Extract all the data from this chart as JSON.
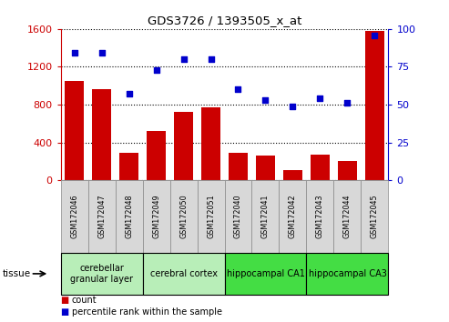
{
  "title": "GDS3726 / 1393505_x_at",
  "samples": [
    "GSM172046",
    "GSM172047",
    "GSM172048",
    "GSM172049",
    "GSM172050",
    "GSM172051",
    "GSM172040",
    "GSM172041",
    "GSM172042",
    "GSM172043",
    "GSM172044",
    "GSM172045"
  ],
  "counts": [
    1050,
    960,
    290,
    520,
    720,
    770,
    290,
    260,
    110,
    270,
    200,
    1580
  ],
  "percentiles": [
    84,
    84,
    57,
    73,
    80,
    80,
    60,
    53,
    49,
    54,
    51,
    96
  ],
  "bar_color": "#cc0000",
  "dot_color": "#0000cc",
  "left_ylim": [
    0,
    1600
  ],
  "right_ylim": [
    0,
    100
  ],
  "left_yticks": [
    0,
    400,
    800,
    1200,
    1600
  ],
  "right_yticks": [
    0,
    25,
    50,
    75,
    100
  ],
  "tissue_groups": [
    {
      "label": "cerebellar\ngranular layer",
      "start": 0,
      "end": 3,
      "color": "#b8eeb8"
    },
    {
      "label": "cerebral cortex",
      "start": 3,
      "end": 6,
      "color": "#b8eeb8"
    },
    {
      "label": "hippocampal CA1",
      "start": 6,
      "end": 9,
      "color": "#44dd44"
    },
    {
      "label": "hippocampal CA3",
      "start": 9,
      "end": 12,
      "color": "#44dd44"
    }
  ],
  "legend_items": [
    {
      "label": "count",
      "color": "#cc0000"
    },
    {
      "label": "percentile rank within the sample",
      "color": "#0000cc"
    }
  ],
  "tissue_label": "tissue",
  "bg_color": "#ffffff",
  "tick_label_color_left": "#cc0000",
  "tick_label_color_right": "#0000cc",
  "xtick_bg": "#d8d8d8",
  "xtick_border": "#888888"
}
